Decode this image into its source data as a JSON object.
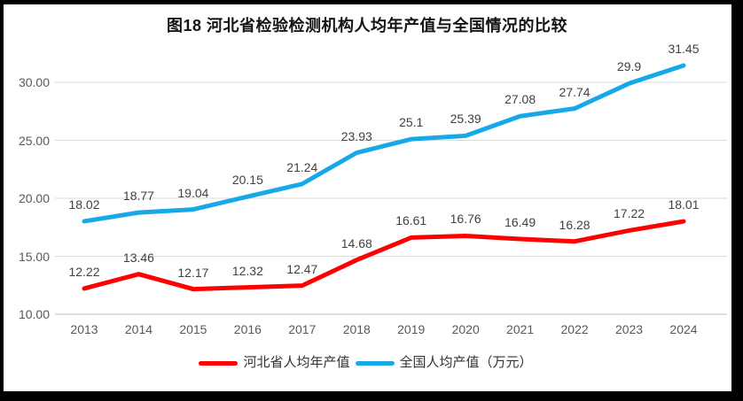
{
  "chart_data": {
    "type": "line",
    "title": "图18 河北省检验检测机构人均年产值与全国情况的比较",
    "xlabel": "",
    "ylabel": "",
    "categories": [
      "2013",
      "2014",
      "2015",
      "2016",
      "2017",
      "2018",
      "2019",
      "2020",
      "2021",
      "2022",
      "2023",
      "2024"
    ],
    "series": [
      {
        "name": "河北省人均年产值",
        "color": "#fe0000",
        "values": [
          12.22,
          13.46,
          12.17,
          12.32,
          12.47,
          14.68,
          16.61,
          16.76,
          16.49,
          16.28,
          17.22,
          18.01
        ],
        "labels": [
          "12.22",
          "13.46",
          "12.17",
          "12.32",
          "12.47",
          "14.68",
          "16.61",
          "16.76",
          "16.49",
          "16.28",
          "17.22",
          "18.01"
        ]
      },
      {
        "name": "全国人均产值（万元）",
        "color": "#17a8e8",
        "values": [
          18.02,
          18.77,
          19.04,
          20.15,
          21.24,
          23.93,
          25.1,
          25.39,
          27.08,
          27.74,
          29.9,
          31.45
        ],
        "labels": [
          "18.02",
          "18.77",
          "19.04",
          "20.15",
          "21.24",
          "23.93",
          "25.1",
          "25.39",
          "27.08",
          "27.74",
          "29.9",
          "31.45"
        ]
      }
    ],
    "ylim": [
      10,
      30
    ],
    "yticks": [
      "10.00",
      "15.00",
      "20.00",
      "25.00",
      "30.00"
    ],
    "grid": true,
    "legend_position": "bottom",
    "colors": {
      "gridline": "#d9d9d9",
      "axis_line": "#bfbfbf",
      "tick_text": "#595959",
      "data_label_text": "#404040",
      "frame_border": "#000000"
    }
  }
}
